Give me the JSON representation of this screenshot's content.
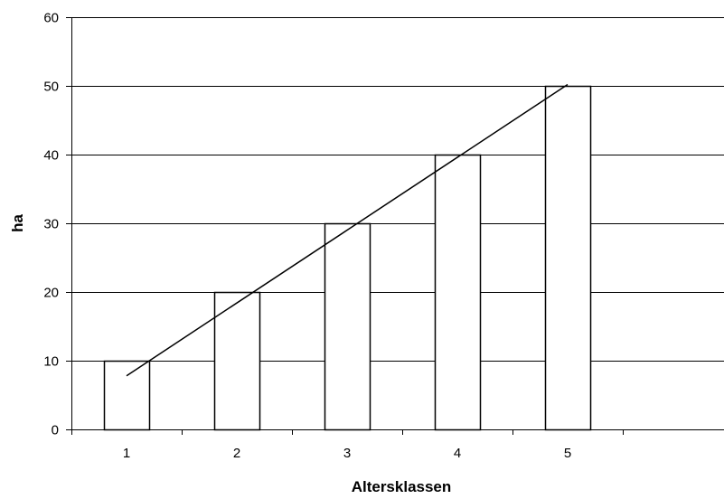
{
  "chart_data": {
    "type": "bar",
    "categories": [
      "1",
      "2",
      "3",
      "4",
      "5"
    ],
    "values": [
      10,
      20,
      30,
      40,
      50
    ],
    "xlabel": "Altersklassen",
    "ylabel": "ha",
    "ylim": [
      0,
      60
    ],
    "yticks": [
      0,
      10,
      20,
      30,
      40,
      50,
      60
    ],
    "grid": true,
    "legend": "none",
    "trendline": {
      "type": "linear",
      "x": [
        1,
        5
      ],
      "y": [
        7.8,
        50.2
      ]
    },
    "colors": {
      "bar_fill": "#ffffff",
      "bar_stroke": "#000000",
      "grid": "#000000",
      "trendline": "#000000"
    }
  }
}
